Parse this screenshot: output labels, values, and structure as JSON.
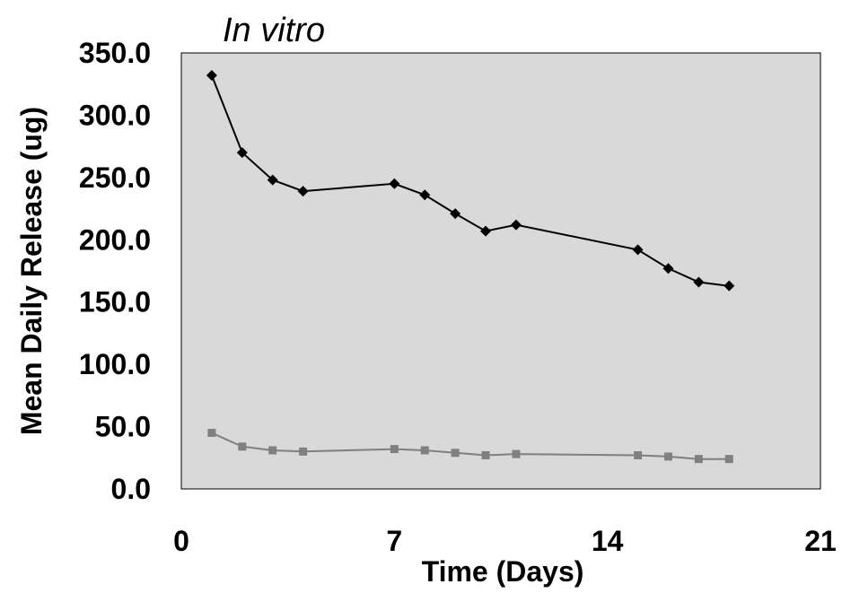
{
  "chart_data": {
    "type": "line",
    "title": "In vitro",
    "xlabel": "Time (Days)",
    "ylabel": "Mean Daily Release (ug)",
    "xlim": [
      0,
      21
    ],
    "ylim": [
      0,
      350
    ],
    "x_ticks": [
      0,
      7,
      14,
      21
    ],
    "x_tick_labels": [
      "0",
      "7",
      "14",
      "21"
    ],
    "y_ticks": [
      0,
      50,
      100,
      150,
      200,
      250,
      300,
      350
    ],
    "y_tick_labels": [
      "0.0",
      "50.0",
      "100.0",
      "150.0",
      "200.0",
      "250.0",
      "300.0",
      "350.0"
    ],
    "plot_background": "#d9d9d9",
    "grid": false,
    "legend": "none",
    "series": [
      {
        "color": "#000000",
        "marker": "diamond",
        "x": [
          1,
          2,
          3,
          4,
          7,
          8,
          9,
          10,
          11,
          15,
          16,
          17,
          18
        ],
        "y": [
          332,
          270,
          248,
          239,
          245,
          236,
          221,
          207,
          212,
          192,
          177,
          166,
          163
        ]
      },
      {
        "color": "#808080",
        "marker": "square",
        "x": [
          1,
          2,
          3,
          4,
          7,
          8,
          9,
          10,
          11,
          15,
          16,
          17,
          18
        ],
        "y": [
          45,
          34,
          31,
          30,
          32,
          31,
          29,
          27,
          28,
          27,
          26,
          24,
          24
        ]
      }
    ]
  }
}
